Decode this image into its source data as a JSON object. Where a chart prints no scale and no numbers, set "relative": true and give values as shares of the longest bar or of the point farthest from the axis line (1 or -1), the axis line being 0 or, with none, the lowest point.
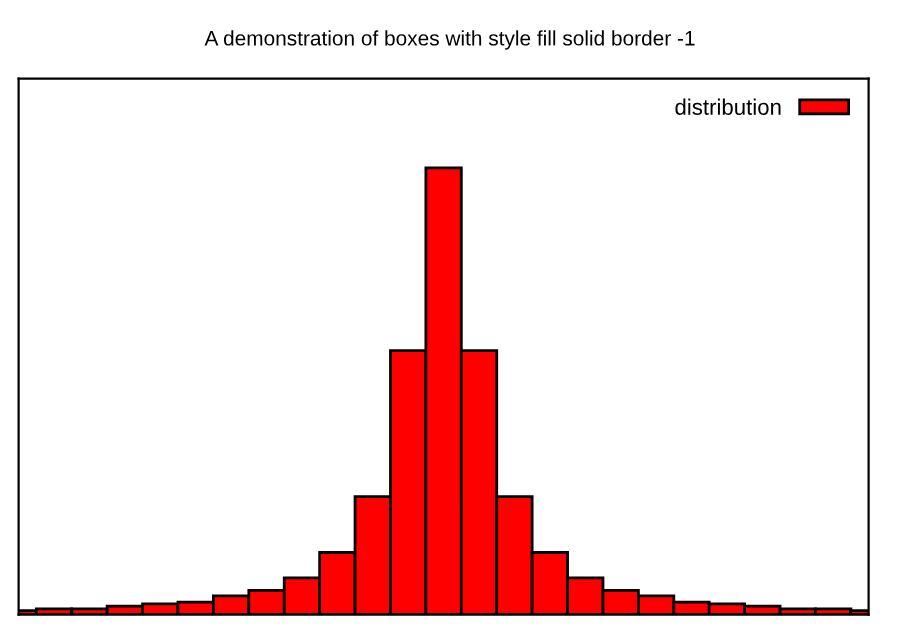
{
  "chart_data": {
    "type": "bar",
    "title": "A demonstration of boxes with style fill solid border -1",
    "relative": true,
    "legend": "top right",
    "categories": [
      null,
      null,
      null,
      null,
      null,
      null,
      null,
      null,
      null,
      null,
      null,
      null,
      null,
      null,
      null,
      null,
      null,
      null,
      null,
      null,
      null,
      null,
      null,
      null,
      null
    ],
    "series": [
      {
        "name": "distribution",
        "color": "#ff0000",
        "values": [
          0.009,
          0.013,
          0.013,
          0.019,
          0.024,
          0.028,
          0.042,
          0.054,
          0.082,
          0.139,
          0.264,
          0.591,
          1,
          0.591,
          0.264,
          0.139,
          0.082,
          0.054,
          0.042,
          0.028,
          0.024,
          0.019,
          0.013,
          0.013,
          0.009
        ]
      }
    ]
  }
}
